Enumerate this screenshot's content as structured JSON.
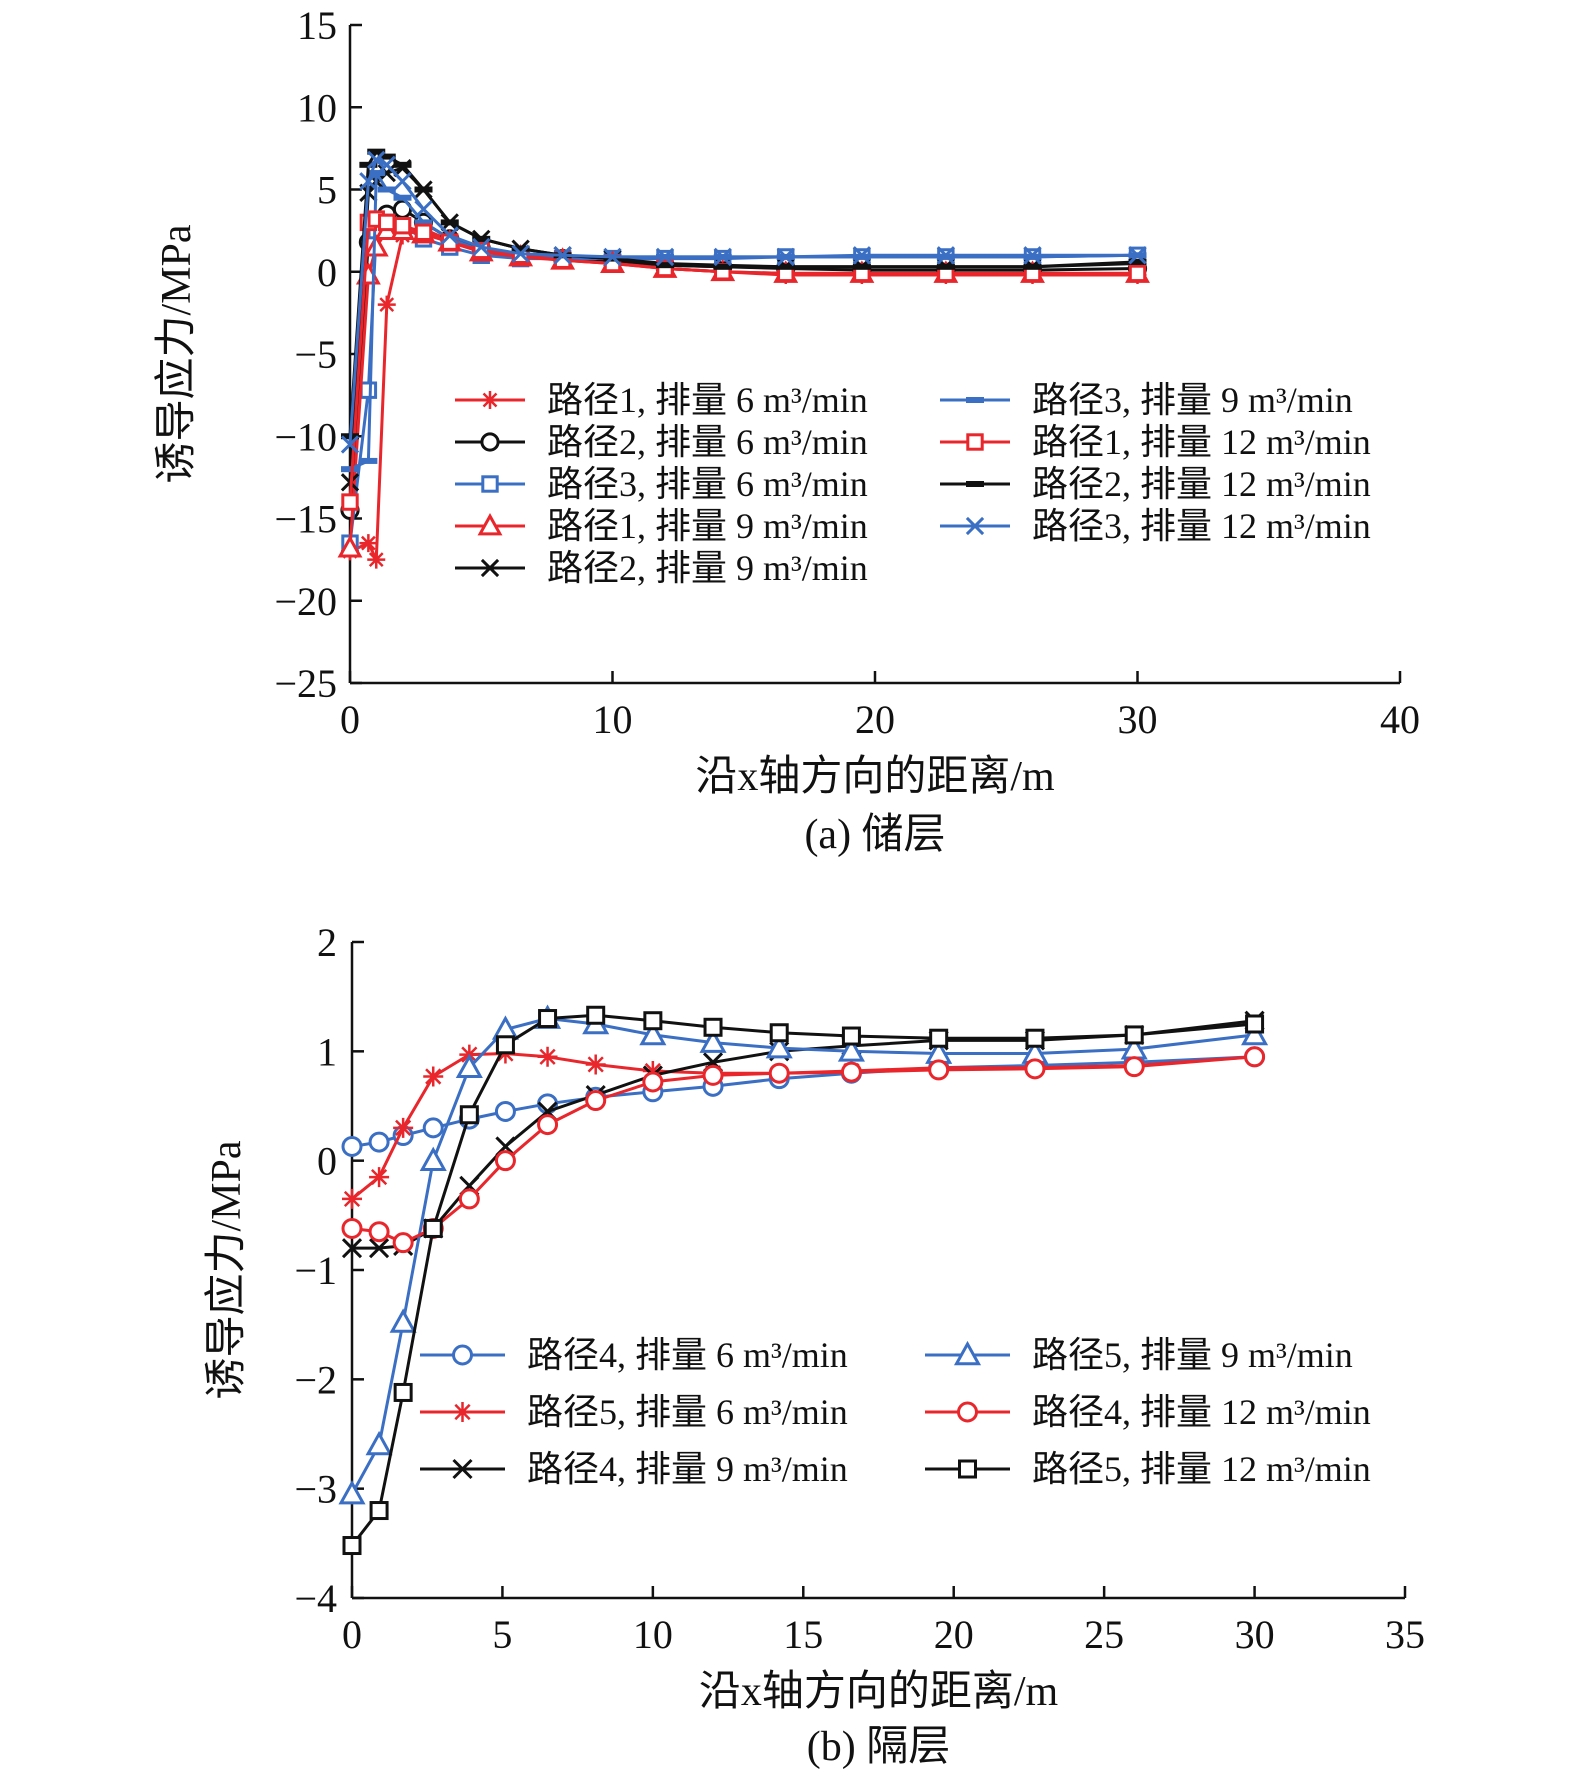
{
  "chart_data": [
    {
      "type": "line",
      "caption": "(a) 储层",
      "xlabel": "沿x轴方向的距离/m",
      "ylabel": "诱导应力/MPa",
      "xlim": [
        0,
        40
      ],
      "ylim": [
        -25,
        15
      ],
      "xticks": [
        0,
        10,
        20,
        30,
        40
      ],
      "yticks": [
        15,
        10,
        5,
        0,
        -5,
        -10,
        -15,
        -20,
        -25
      ],
      "ytick_labels": [
        "15",
        "10",
        "5",
        "0",
        "−5",
        "−10",
        "−15",
        "−20",
        "−25"
      ],
      "legend_position": "center-right",
      "series": [
        {
          "name": "路径1, 排量 6 m³/min",
          "color": "#e8262b",
          "marker": "asterisk",
          "x": [
            0,
            0.7,
            1.0,
            1.4,
            2.0,
            2.8,
            3.8,
            5.0,
            6.5,
            8.1,
            10.0,
            12.0,
            14.2,
            16.6,
            19.5,
            22.7,
            26.0,
            30.0
          ],
          "y": [
            -17.0,
            -16.5,
            -17.5,
            -2.0,
            2.2,
            2.6,
            1.9,
            1.3,
            1.0,
            0.7,
            0.6,
            0.2,
            0.0,
            -0.2,
            -0.2,
            -0.2,
            -0.2,
            -0.2
          ]
        },
        {
          "name": "路径2, 排量 6 m³/min",
          "color": "#111111",
          "marker": "circle",
          "x": [
            0,
            0.7,
            1.0,
            1.4,
            2.0,
            2.8,
            3.8,
            5.0,
            6.5,
            8.1,
            10.0,
            12.0,
            14.2,
            16.6,
            19.5,
            22.7,
            26.0,
            30.0
          ],
          "y": [
            -14.5,
            1.8,
            2.8,
            3.5,
            3.8,
            3.0,
            2.0,
            1.4,
            1.0,
            0.8,
            0.7,
            0.4,
            0.3,
            0.2,
            0.1,
            0.1,
            0.1,
            0.2
          ]
        },
        {
          "name": "路径3, 排量 6 m³/min",
          "color": "#3a6fc4",
          "marker": "square",
          "x": [
            0,
            0.7,
            1.0,
            1.4,
            2.0,
            2.8,
            3.8,
            5.0,
            6.5,
            8.1,
            10.0,
            12.0,
            14.2,
            16.6,
            19.5,
            22.7,
            26.0,
            30.0
          ],
          "y": [
            -16.5,
            -7.2,
            2.5,
            3.0,
            2.8,
            2.0,
            1.5,
            1.0,
            0.8,
            0.8,
            0.8,
            0.8,
            0.8,
            0.9,
            0.9,
            0.9,
            0.9,
            1.0
          ]
        },
        {
          "name": "路径1, 排量 9 m³/min",
          "color": "#e8262b",
          "marker": "triangle",
          "x": [
            0,
            0.7,
            1.0,
            1.4,
            2.0,
            2.8,
            3.8,
            5.0,
            6.5,
            8.1,
            10.0,
            12.0,
            14.2,
            16.6,
            19.5,
            22.7,
            26.0,
            30.0
          ],
          "y": [
            -16.8,
            -0.2,
            1.5,
            2.5,
            2.5,
            2.3,
            1.8,
            1.2,
            0.9,
            0.7,
            0.5,
            0.2,
            0.0,
            -0.1,
            -0.1,
            -0.1,
            -0.1,
            -0.1
          ]
        },
        {
          "name": "路径2, 排量 9 m³/min",
          "color": "#111111",
          "marker": "x",
          "x": [
            0,
            0.7,
            1.0,
            1.4,
            2.0,
            2.8,
            3.8,
            5.0,
            6.5,
            8.1,
            10.0,
            12.0,
            14.2,
            16.6,
            19.5,
            22.7,
            26.0,
            30.0
          ],
          "y": [
            -12.8,
            4.8,
            5.5,
            6.0,
            6.3,
            5.0,
            3.0,
            2.0,
            1.4,
            1.0,
            0.8,
            0.5,
            0.4,
            0.3,
            0.3,
            0.3,
            0.3,
            0.5
          ]
        },
        {
          "name": "路径3, 排量 9 m³/min",
          "color": "#3a6fc4",
          "marker": "dash",
          "x": [
            0,
            0.7,
            1.0,
            1.4,
            2.0,
            2.8,
            3.8,
            5.0,
            6.5,
            8.1,
            10.0,
            12.0,
            14.2,
            16.6,
            19.5,
            22.7,
            26.0,
            30.0
          ],
          "y": [
            -12.0,
            -11.5,
            6.0,
            5.0,
            4.5,
            3.0,
            2.0,
            1.3,
            1.0,
            0.9,
            0.9,
            0.9,
            0.9,
            0.9,
            0.9,
            0.9,
            0.9,
            1.0
          ]
        },
        {
          "name": "路径1, 排量 12 m³/min",
          "color": "#e8262b",
          "marker": "square",
          "x": [
            0,
            0.7,
            1.0,
            1.4,
            2.0,
            2.8,
            3.8,
            5.0,
            6.5,
            8.1,
            10.0,
            12.0,
            14.2,
            16.6,
            19.5,
            22.7,
            26.0,
            30.0
          ],
          "y": [
            -14.0,
            3.0,
            3.2,
            3.0,
            2.8,
            2.4,
            1.8,
            1.3,
            1.0,
            0.7,
            0.5,
            0.2,
            0.0,
            -0.1,
            -0.1,
            -0.1,
            -0.1,
            -0.1
          ]
        },
        {
          "name": "路径2, 排量 12 m³/min",
          "color": "#111111",
          "marker": "dash",
          "x": [
            0,
            0.7,
            1.0,
            1.4,
            2.0,
            2.8,
            3.8,
            5.0,
            6.5,
            8.1,
            10.0,
            12.0,
            14.2,
            16.6,
            19.5,
            22.7,
            26.0,
            30.0
          ],
          "y": [
            -10.0,
            6.5,
            7.3,
            7.0,
            6.5,
            5.0,
            3.0,
            2.0,
            1.4,
            1.0,
            0.8,
            0.4,
            0.3,
            0.3,
            0.3,
            0.3,
            0.3,
            0.6
          ]
        },
        {
          "name": "路径3, 排量 12 m³/min",
          "color": "#3a6fc4",
          "marker": "x",
          "x": [
            0,
            0.7,
            1.0,
            1.4,
            2.0,
            2.8,
            3.8,
            5.0,
            6.5,
            8.1,
            10.0,
            12.0,
            14.2,
            16.6,
            19.5,
            22.7,
            26.0,
            30.0
          ],
          "y": [
            -10.5,
            5.5,
            6.8,
            6.5,
            5.5,
            3.8,
            2.2,
            1.5,
            1.1,
            1.0,
            0.9,
            0.9,
            0.9,
            0.9,
            1.0,
            1.0,
            1.0,
            1.0
          ]
        }
      ]
    },
    {
      "type": "line",
      "caption": "(b) 隔层",
      "xlabel": "沿x轴方向的距离/m",
      "ylabel": "诱导应力/MPa",
      "xlim": [
        0,
        35
      ],
      "ylim": [
        -4,
        2
      ],
      "xticks": [
        0,
        5,
        10,
        15,
        20,
        25,
        30,
        35
      ],
      "yticks": [
        2,
        1,
        0,
        -1,
        -2,
        -3,
        -4
      ],
      "ytick_labels": [
        "2",
        "1",
        "0",
        "−1",
        "−2",
        "−3",
        "−4"
      ],
      "legend_position": "bottom-right",
      "series": [
        {
          "name": "路径4, 排量 6 m³/min",
          "color": "#3a6fc4",
          "marker": "circle",
          "x": [
            0,
            0.9,
            1.7,
            2.7,
            3.9,
            5.1,
            6.5,
            8.1,
            10.0,
            12.0,
            14.2,
            16.6,
            19.5,
            22.7,
            26.0,
            30.0
          ],
          "y": [
            0.13,
            0.17,
            0.23,
            0.3,
            0.38,
            0.45,
            0.52,
            0.58,
            0.63,
            0.68,
            0.75,
            0.8,
            0.85,
            0.87,
            0.9,
            0.95
          ]
        },
        {
          "name": "路径5, 排量 6 m³/min",
          "color": "#e8262b",
          "marker": "asterisk",
          "x": [
            0,
            0.9,
            1.7,
            2.7,
            3.9,
            5.1,
            6.5,
            8.1,
            10.0,
            12.0,
            14.2,
            16.6,
            19.5,
            22.7,
            26.0,
            30.0
          ],
          "y": [
            -0.35,
            -0.15,
            0.3,
            0.77,
            0.97,
            0.98,
            0.95,
            0.88,
            0.82,
            0.8,
            0.8,
            0.82,
            0.85,
            0.85,
            0.87,
            0.95
          ]
        },
        {
          "name": "路径4, 排量 9 m³/min",
          "color": "#111111",
          "marker": "x",
          "x": [
            0,
            0.9,
            1.7,
            2.7,
            3.9,
            5.1,
            6.5,
            8.1,
            10.0,
            12.0,
            14.2,
            16.6,
            19.5,
            22.7,
            26.0,
            30.0
          ],
          "y": [
            -0.8,
            -0.8,
            -0.78,
            -0.62,
            -0.23,
            0.13,
            0.45,
            0.6,
            0.78,
            0.9,
            1.0,
            1.05,
            1.1,
            1.1,
            1.15,
            1.28
          ]
        },
        {
          "name": "路径5, 排量 9 m³/min",
          "color": "#3a6fc4",
          "marker": "triangle",
          "x": [
            0,
            0.9,
            1.7,
            2.7,
            3.9,
            5.1,
            6.5,
            8.1,
            10.0,
            12.0,
            14.2,
            16.6,
            19.5,
            22.7,
            26.0,
            30.0
          ],
          "y": [
            -3.05,
            -2.6,
            -1.48,
            0.0,
            0.85,
            1.2,
            1.3,
            1.25,
            1.15,
            1.08,
            1.03,
            1.0,
            0.98,
            0.98,
            1.02,
            1.15
          ]
        },
        {
          "name": "路径4, 排量 12 m³/min",
          "color": "#e8262b",
          "marker": "circle",
          "x": [
            0,
            0.9,
            1.7,
            2.7,
            3.9,
            5.1,
            6.5,
            8.1,
            10.0,
            12.0,
            14.2,
            16.6,
            19.5,
            22.7,
            26.0,
            30.0
          ],
          "y": [
            -0.62,
            -0.65,
            -0.75,
            -0.62,
            -0.35,
            0.0,
            0.33,
            0.55,
            0.72,
            0.78,
            0.8,
            0.81,
            0.83,
            0.84,
            0.86,
            0.95
          ]
        },
        {
          "name": "路径5, 排量 12 m³/min",
          "color": "#111111",
          "marker": "square",
          "x": [
            0,
            0.9,
            1.7,
            2.7,
            3.9,
            5.1,
            6.5,
            8.1,
            10.0,
            12.0,
            14.2,
            16.6,
            19.5,
            22.7,
            26.0,
            30.0
          ],
          "y": [
            -3.52,
            -3.2,
            -2.12,
            -0.62,
            0.42,
            1.06,
            1.3,
            1.33,
            1.28,
            1.22,
            1.17,
            1.14,
            1.12,
            1.12,
            1.15,
            1.25
          ]
        }
      ]
    }
  ]
}
